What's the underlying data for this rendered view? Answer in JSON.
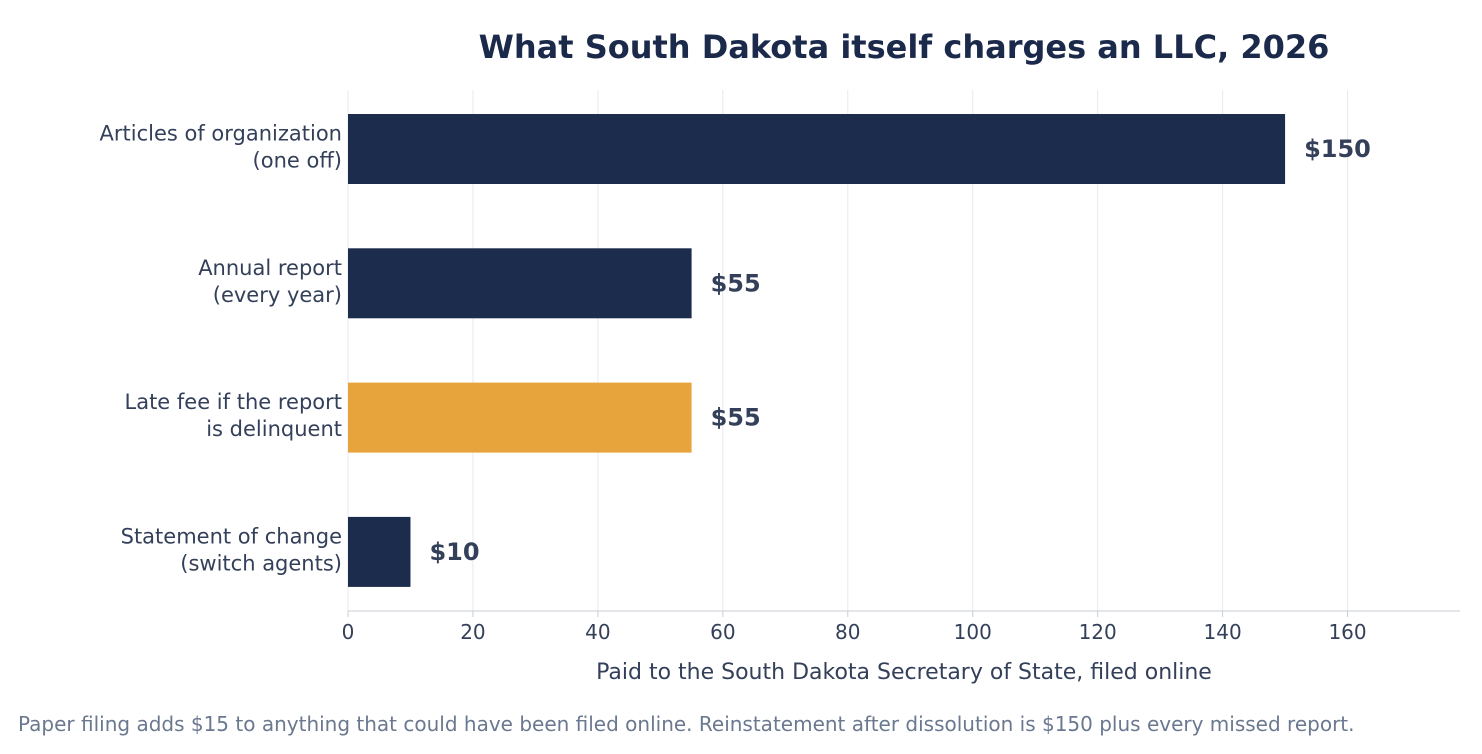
{
  "chart_data": {
    "type": "bar",
    "orientation": "horizontal",
    "title": "What South Dakota itself charges an LLC, 2026",
    "xlabel": "Paid to the South Dakota Secretary of State, filed online",
    "ylabel": "",
    "xlim": [
      0,
      178
    ],
    "xticks": [
      0,
      20,
      40,
      60,
      80,
      100,
      120,
      140,
      160
    ],
    "grid": "vertical",
    "categories": [
      [
        "Articles of organization",
        "(one off)"
      ],
      [
        "Annual report",
        "(every year)"
      ],
      [
        "Late fee if the report",
        "is delinquent"
      ],
      [
        "Statement of change",
        "(switch agents)"
      ]
    ],
    "values": [
      150,
      55,
      55,
      10
    ],
    "value_labels": [
      "$150",
      "$55",
      "$55",
      "$10"
    ],
    "colors": [
      "#1c2c4c",
      "#1c2c4c",
      "#e8a43c",
      "#1c2c4c"
    ]
  },
  "footnote": "Paper filing adds $15 to anything that could have been filed online. Reinstatement after dissolution is $150 plus every missed report."
}
